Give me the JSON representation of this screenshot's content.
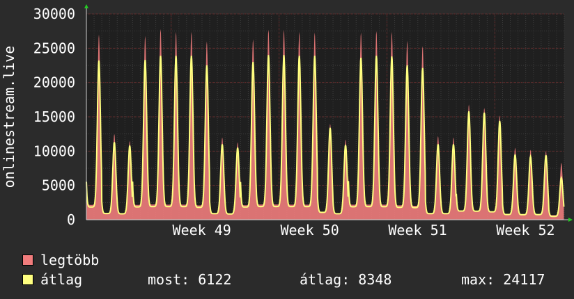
{
  "chart_data": {
    "type": "area",
    "ylabel": "onlinestream.live",
    "ylim": [
      0,
      30000
    ],
    "yticks": [
      0,
      5000,
      10000,
      15000,
      20000,
      25000,
      30000
    ],
    "xticks": [
      {
        "label": "Week 49",
        "day": 9
      },
      {
        "label": "Week 50",
        "day": 16
      },
      {
        "label": "Week 51",
        "day": 23
      },
      {
        "label": "Week 52",
        "day": 30
      }
    ],
    "x_days": 31,
    "grid": true,
    "series": [
      {
        "name": "legtöbb",
        "color": "#f07c7c",
        "daily_peaks": [
          27000,
          12500,
          11500,
          26800,
          27800,
          27400,
          27400,
          26000,
          12000,
          11300,
          26300,
          27700,
          27700,
          27400,
          27300,
          14000,
          11700,
          27300,
          27500,
          27400,
          26100,
          25300,
          12200,
          12000,
          16800,
          16300,
          15200,
          10500,
          10200,
          10000,
          8300
        ]
      },
      {
        "name": "átlag",
        "color": "#ffff80",
        "daily_peaks": [
          23200,
          11300,
          10800,
          23300,
          23900,
          23900,
          23900,
          22500,
          11000,
          10500,
          23000,
          24000,
          24000,
          23900,
          23900,
          13400,
          10900,
          23600,
          23900,
          23800,
          22500,
          22100,
          11000,
          11000,
          15800,
          15600,
          14400,
          9500,
          9200,
          9400,
          6122
        ]
      }
    ],
    "legend": [
      {
        "name": "legtöbb",
        "color": "#f07c7c"
      },
      {
        "name": "átlag",
        "color": "#ffff80"
      }
    ],
    "stats": {
      "most": "most: 6122",
      "atlag": "átlag: 8348",
      "max": "max: 24117"
    }
  }
}
